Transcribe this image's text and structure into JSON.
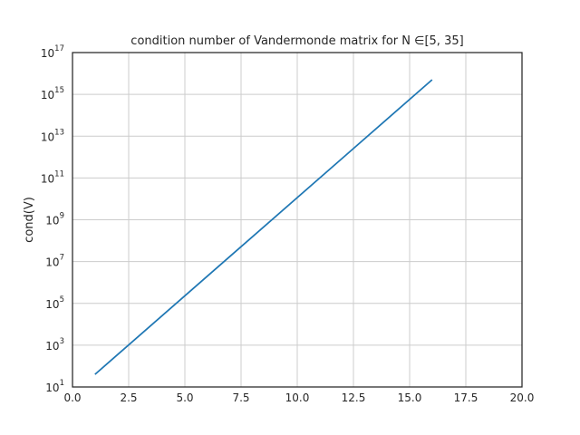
{
  "chart_data": {
    "type": "line",
    "title": "condition number of Vandermonde matrix for N ∈[5, 35]",
    "xlabel": "",
    "ylabel": "cond(V)",
    "xlim": [
      0.0,
      20.0
    ],
    "ylim": [
      10,
      1e+17
    ],
    "yscale": "log",
    "grid": true,
    "legend": "none",
    "x_ticks": [
      "0.0",
      "2.5",
      "5.0",
      "7.5",
      "10.0",
      "12.5",
      "15.0",
      "17.5",
      "20.0"
    ],
    "x_tick_values": [
      0,
      2.5,
      5,
      7.5,
      10,
      12.5,
      15,
      17.5,
      20
    ],
    "y_tick_exponents": [
      "1",
      "3",
      "5",
      "7",
      "9",
      "11",
      "13",
      "15",
      "17"
    ],
    "y_tick_values": [
      10.0,
      1000.0,
      100000.0,
      10000000.0,
      1000000000.0,
      100000000000.0,
      10000000000000.0,
      1000000000000000.0,
      1e+17
    ],
    "series": [
      {
        "color": "#1f77b4",
        "x": [
          1,
          16
        ],
        "y": [
          40,
          5000000000000000.0
        ]
      }
    ]
  }
}
